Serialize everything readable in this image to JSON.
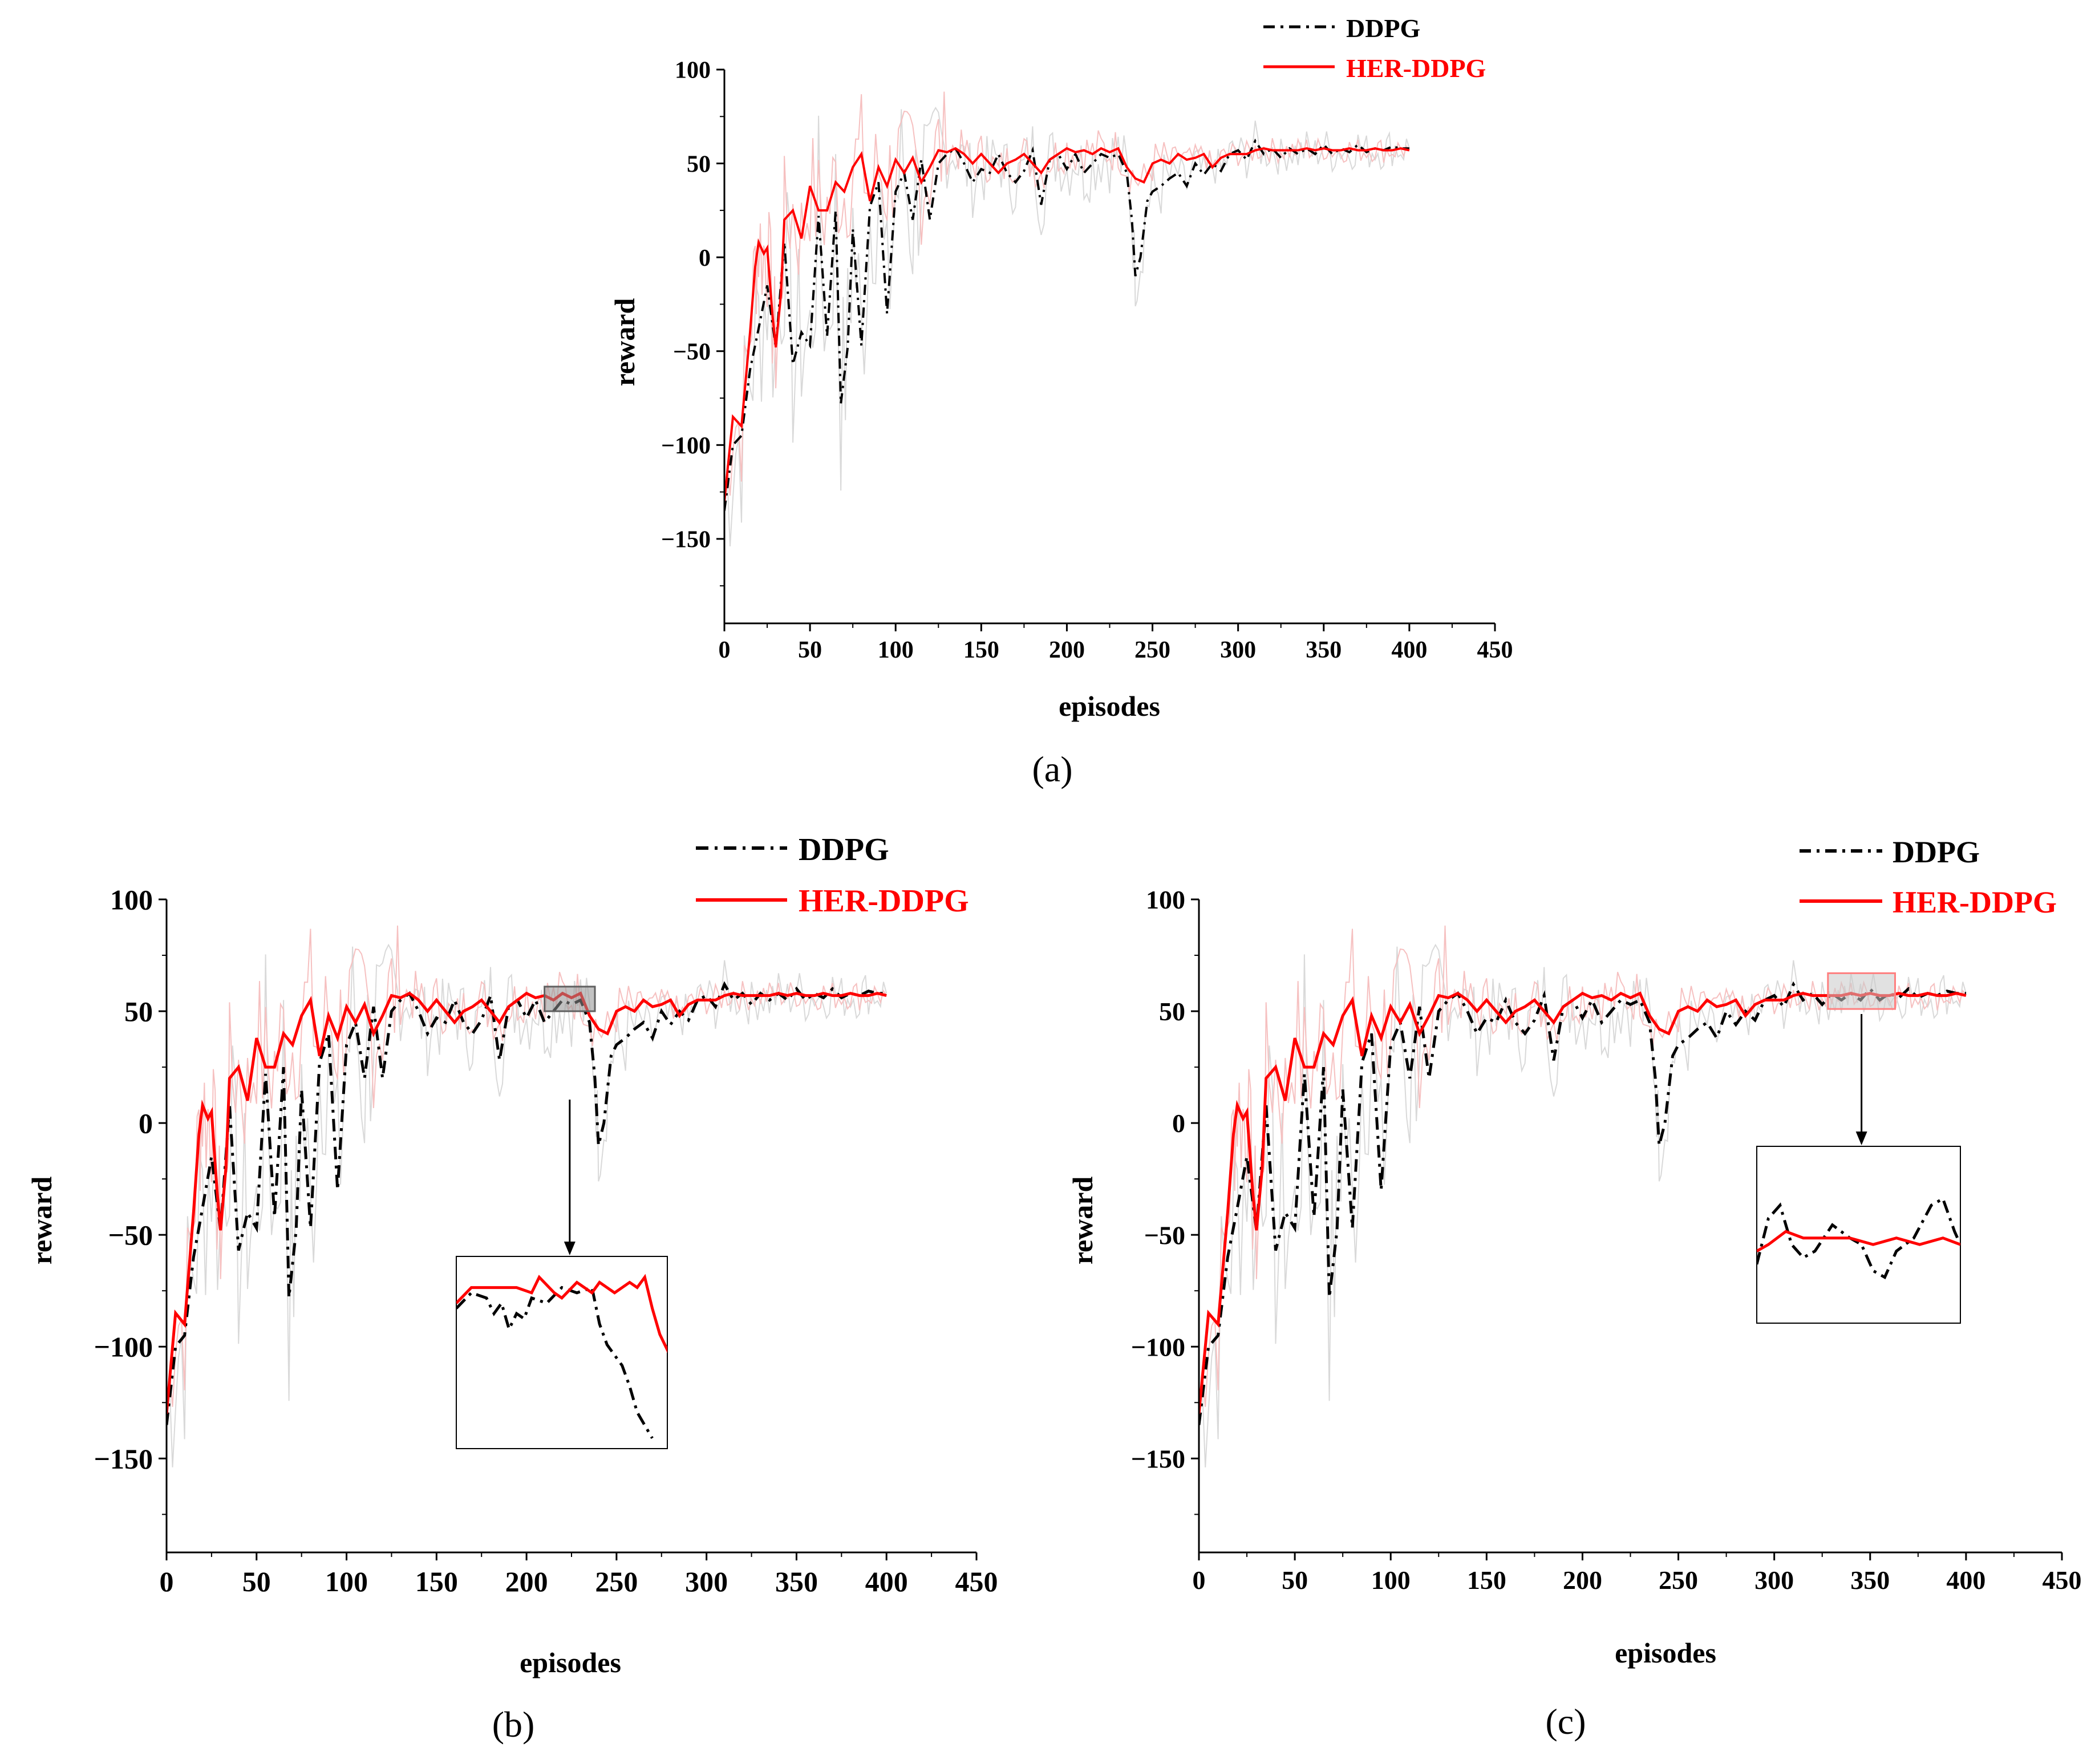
{
  "figure": {
    "caption_a": "(a)",
    "caption_b": "(b)",
    "caption_c": "(c)"
  },
  "colors": {
    "ddpg": "#000000",
    "her": "#ff0000",
    "ddpg_raw": "#d9d9d9",
    "her_raw": "#f6c0c0",
    "zoom_box_b": "#808080",
    "zoom_box_c": "#ff7f7f"
  },
  "chart_data": [
    {
      "id": "a",
      "type": "line",
      "title": "",
      "xlabel": "episodes",
      "ylabel": "reward",
      "xlim": [
        0,
        450
      ],
      "ylim": [
        -195,
        100
      ],
      "xticks": [
        "0",
        "50",
        "100",
        "150",
        "200",
        "250",
        "300",
        "350",
        "400",
        "450"
      ],
      "yticks": [
        "100",
        "50",
        "0",
        "−50",
        "−100",
        "−150"
      ],
      "legend": [
        "DDPG",
        "HER-DDPG"
      ],
      "legend_position": "top-right, above plot",
      "series": [
        {
          "name": "DDPG",
          "style": "dash-dot",
          "x": [
            0,
            5,
            10,
            15,
            20,
            25,
            30,
            35,
            40,
            45,
            50,
            55,
            60,
            65,
            68,
            72,
            75,
            80,
            85,
            90,
            95,
            100,
            105,
            110,
            115,
            120,
            125,
            130,
            135,
            140,
            145,
            150,
            155,
            160,
            165,
            170,
            175,
            180,
            185,
            190,
            195,
            200,
            205,
            210,
            215,
            220,
            225,
            230,
            235,
            238,
            240,
            243,
            247,
            250,
            255,
            260,
            265,
            270,
            275,
            280,
            285,
            290,
            295,
            300,
            305,
            310,
            315,
            320,
            325,
            330,
            335,
            340,
            345,
            350,
            355,
            360,
            365,
            370,
            375,
            380,
            385,
            390,
            395,
            400
          ],
          "values": [
            -135,
            -100,
            -95,
            -60,
            -38,
            -15,
            -48,
            8,
            -57,
            -40,
            -47,
            22,
            -42,
            25,
            -78,
            -48,
            15,
            -47,
            27,
            40,
            -30,
            35,
            45,
            20,
            52,
            20,
            50,
            55,
            58,
            50,
            40,
            47,
            45,
            55,
            45,
            40,
            46,
            57,
            28,
            52,
            55,
            47,
            55,
            45,
            50,
            55,
            53,
            55,
            45,
            20,
            -10,
            0,
            30,
            35,
            38,
            42,
            45,
            38,
            50,
            44,
            50,
            46,
            55,
            57,
            52,
            62,
            55,
            58,
            53,
            58,
            55,
            58,
            55,
            60,
            55,
            58,
            56,
            60,
            56,
            58,
            57,
            59,
            58,
            58
          ]
        },
        {
          "name": "HER-DDPG",
          "style": "solid",
          "x": [
            0,
            5,
            10,
            15,
            18,
            20,
            23,
            25,
            28,
            30,
            33,
            35,
            40,
            45,
            50,
            55,
            60,
            65,
            70,
            75,
            80,
            85,
            90,
            95,
            100,
            105,
            110,
            115,
            120,
            125,
            130,
            135,
            140,
            145,
            150,
            155,
            160,
            165,
            170,
            175,
            180,
            185,
            190,
            195,
            200,
            205,
            210,
            215,
            220,
            225,
            230,
            235,
            240,
            245,
            250,
            255,
            260,
            265,
            270,
            275,
            280,
            285,
            290,
            295,
            300,
            305,
            310,
            315,
            320,
            325,
            330,
            335,
            340,
            345,
            350,
            355,
            360,
            365,
            370,
            375,
            380,
            385,
            390,
            395,
            400
          ],
          "values": [
            -130,
            -85,
            -90,
            -40,
            -5,
            8,
            2,
            5,
            -30,
            -48,
            -20,
            20,
            25,
            10,
            38,
            25,
            25,
            40,
            35,
            48,
            55,
            30,
            48,
            38,
            52,
            45,
            53,
            40,
            48,
            57,
            56,
            58,
            55,
            50,
            55,
            50,
            45,
            50,
            52,
            55,
            50,
            45,
            52,
            55,
            58,
            56,
            57,
            55,
            58,
            56,
            58,
            48,
            42,
            40,
            50,
            52,
            50,
            55,
            52,
            53,
            55,
            48,
            53,
            55,
            55,
            55,
            57,
            58,
            57,
            57,
            57,
            57,
            58,
            57,
            58,
            57,
            57,
            58,
            57,
            57,
            58,
            57,
            57,
            58,
            57
          ]
        }
      ]
    },
    {
      "id": "b",
      "type": "line",
      "title": "",
      "xlabel": "episodes",
      "ylabel": "reward",
      "xlim": [
        0,
        450
      ],
      "ylim": [
        -192,
        100
      ],
      "xticks": [
        "0",
        "50",
        "100",
        "150",
        "200",
        "250",
        "300",
        "350",
        "400",
        "450"
      ],
      "yticks": [
        "100",
        "50",
        "0",
        "−50",
        "−100",
        "−150"
      ],
      "legend": [
        "DDPG",
        "HER-DDPG"
      ],
      "legend_position": "top-right, above plot",
      "zoom_region": {
        "x": [
          210,
          238
        ],
        "y": [
          50,
          61
        ]
      },
      "series_ref": "a"
    },
    {
      "id": "c",
      "type": "line",
      "title": "",
      "xlabel": "episodes",
      "ylabel": "reward",
      "xlim": [
        0,
        450
      ],
      "ylim": [
        -192,
        100
      ],
      "xticks": [
        "0",
        "50",
        "100",
        "150",
        "200",
        "250",
        "300",
        "350",
        "400",
        "450"
      ],
      "yticks": [
        "100",
        "50",
        "0",
        "−50",
        "−100",
        "−150"
      ],
      "legend": [
        "DDPG",
        "HER-DDPG"
      ],
      "legend_position": "top-right, above plot",
      "zoom_region": {
        "x": [
          328,
          363
        ],
        "y": [
          51,
          67
        ]
      },
      "series_ref": "a"
    }
  ]
}
